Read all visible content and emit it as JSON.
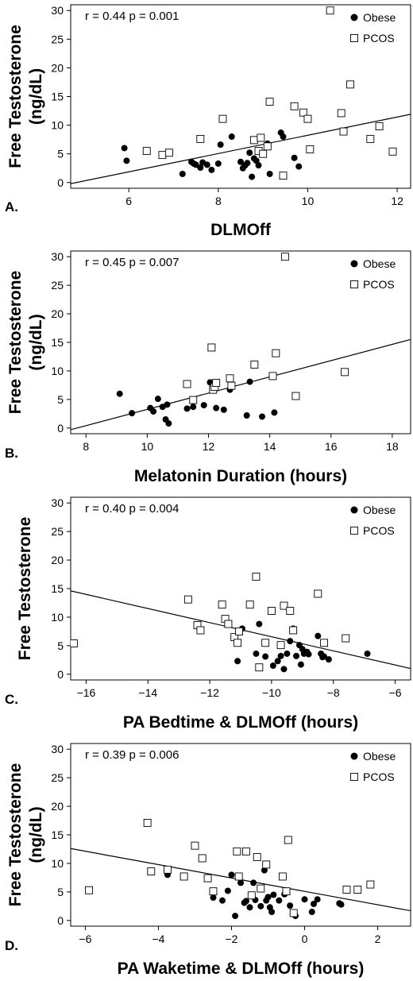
{
  "figure": {
    "y_axis_label_lines": [
      "Free Testosterone",
      "(ng/dL)"
    ]
  },
  "chart_data": [
    {
      "type": "scatter",
      "panel_label": "A.",
      "xlabel": "DLMOff",
      "ylabel": "Free Testosterone (ng/dL)",
      "annotation": "r = 0.44 p = 0.001",
      "xlim": [
        4.7,
        12.3
      ],
      "ylim": [
        -1,
        31
      ],
      "xticks": [
        6,
        8,
        10,
        12
      ],
      "yticks": [
        0,
        5,
        10,
        15,
        20,
        25,
        30
      ],
      "legend": {
        "placement": "top-right"
      },
      "fit_line": {
        "x": [
          4.7,
          12.3
        ],
        "y": [
          -0.2,
          11.9
        ]
      },
      "series": [
        {
          "name": "Obese",
          "marker": "filled-circle",
          "x": [
            5.9,
            5.95,
            7.2,
            7.4,
            7.45,
            7.5,
            7.6,
            7.65,
            7.75,
            7.85,
            8.0,
            8.05,
            8.3,
            8.5,
            8.55,
            8.6,
            8.65,
            8.7,
            8.75,
            8.8,
            8.85,
            8.9,
            9.1,
            9.15,
            9.4,
            9.45,
            9.7,
            9.8
          ],
          "y": [
            6,
            3.8,
            1.5,
            3.6,
            3.3,
            3.1,
            2.6,
            3.5,
            3.1,
            2.2,
            3.3,
            6.6,
            8.0,
            3.6,
            2.5,
            3.0,
            3.4,
            5.2,
            1.0,
            4.2,
            3.8,
            3.0,
            6.8,
            1.5,
            8.7,
            8.0,
            4.3,
            2.8
          ]
        },
        {
          "name": "PCOS",
          "marker": "open-square",
          "x": [
            6.4,
            6.75,
            6.9,
            7.6,
            8.1,
            8.8,
            8.9,
            8.95,
            9.0,
            9.1,
            9.15,
            9.45,
            9.7,
            9.9,
            10.0,
            10.05,
            10.5,
            10.75,
            10.8,
            10.95,
            11.4,
            11.6,
            11.9
          ],
          "y": [
            5.5,
            4.8,
            5.2,
            7.6,
            11.1,
            7.4,
            5.5,
            7.8,
            5.0,
            6.3,
            14.1,
            1.2,
            13.3,
            12.2,
            11.1,
            5.8,
            30.0,
            12.1,
            8.9,
            17.1,
            7.6,
            9.8,
            5.4
          ]
        }
      ]
    },
    {
      "type": "scatter",
      "panel_label": "B.",
      "xlabel": "Melatonin Duration (hours)",
      "ylabel": "Free Testosterone (ng/dL)",
      "annotation": "r = 0.45 p = 0.007",
      "xlim": [
        7.5,
        18.6
      ],
      "ylim": [
        -1,
        31
      ],
      "xticks": [
        8,
        10,
        12,
        14,
        16,
        18
      ],
      "yticks": [
        0,
        5,
        10,
        15,
        20,
        25,
        30
      ],
      "legend": {
        "placement": "top-right"
      },
      "fit_line": {
        "x": [
          7.5,
          18.6
        ],
        "y": [
          -0.3,
          15.5
        ]
      },
      "series": [
        {
          "name": "Obese",
          "marker": "filled-circle",
          "x": [
            9.1,
            9.5,
            10.1,
            10.2,
            10.35,
            10.5,
            10.6,
            10.65,
            10.7,
            11.3,
            11.5,
            11.85,
            12.05,
            12.25,
            12.5,
            12.7,
            13.25,
            13.35,
            13.75,
            14.15
          ],
          "y": [
            6.0,
            2.6,
            3.5,
            2.9,
            5.1,
            3.7,
            1.5,
            4.1,
            0.8,
            3.4,
            3.7,
            4.0,
            8.0,
            3.5,
            3.2,
            6.7,
            2.2,
            8.1,
            2.0,
            2.7
          ]
        },
        {
          "name": "PCOS",
          "marker": "open-square",
          "x": [
            11.3,
            11.5,
            12.1,
            12.15,
            12.2,
            12.25,
            12.7,
            12.75,
            13.5,
            14.1,
            14.2,
            14.5,
            14.85,
            16.45
          ],
          "y": [
            7.7,
            4.9,
            14.1,
            6.7,
            7.2,
            7.9,
            8.7,
            7.4,
            11.1,
            9.1,
            13.1,
            30.0,
            5.6,
            9.8
          ]
        }
      ]
    },
    {
      "type": "scatter",
      "panel_label": "C.",
      "xlabel": "PA Bedtime & DLMOff (hours)",
      "ylabel": "Free Testosterone",
      "annotation": "r = 0.40 p = 0.004",
      "xlim": [
        -16.5,
        -5.5
      ],
      "ylim": [
        -1,
        31
      ],
      "xticks": [
        -16,
        -14,
        -12,
        -10,
        -8,
        -6
      ],
      "yticks": [
        0,
        5,
        10,
        15,
        20,
        25,
        30
      ],
      "legend": {
        "placement": "top-right"
      },
      "fit_line": {
        "x": [
          -16.5,
          -5.5
        ],
        "y": [
          14.6,
          1.0
        ]
      },
      "series": [
        {
          "name": "Obese",
          "marker": "filled-circle",
          "x": [
            -11.1,
            -10.95,
            -10.5,
            -10.4,
            -10.2,
            -9.95,
            -9.8,
            -9.7,
            -9.6,
            -9.5,
            -9.4,
            -9.3,
            -9.2,
            -9.1,
            -9.05,
            -9.0,
            -8.95,
            -8.85,
            -8.8,
            -8.5,
            -8.4,
            -8.35,
            -8.3,
            -8.15,
            -6.9
          ],
          "y": [
            2.3,
            8.0,
            3.6,
            8.8,
            3.1,
            1.5,
            2.3,
            3.2,
            0.9,
            3.6,
            5.8,
            8.0,
            3.2,
            5.1,
            1.7,
            4.4,
            3.6,
            3.9,
            3.5,
            6.7,
            3.6,
            3.0,
            3.1,
            2.6,
            3.6
          ]
        },
        {
          "name": "PCOS",
          "marker": "open-square",
          "x": [
            -16.4,
            -12.7,
            -12.4,
            -12.3,
            -11.6,
            -11.5,
            -11.4,
            -11.2,
            -11.1,
            -11.05,
            -10.7,
            -10.5,
            -10.4,
            -10.2,
            -10.0,
            -9.7,
            -9.6,
            -9.4,
            -9.3,
            -8.5,
            -8.3,
            -7.6
          ],
          "y": [
            5.4,
            13.1,
            8.6,
            7.7,
            12.2,
            9.7,
            8.8,
            6.5,
            5.5,
            7.5,
            12.2,
            17.1,
            1.2,
            5.5,
            11.1,
            5.1,
            12.0,
            11.1,
            7.7,
            14.1,
            5.5,
            6.3
          ]
        }
      ]
    },
    {
      "type": "scatter",
      "panel_label": "D.",
      "xlabel": "PA Waketime & DLMOff (hours)",
      "ylabel": "Free Testosterone (ng/dL)",
      "annotation": "r = 0.39 p = 0.006",
      "xlim": [
        -6.4,
        2.9
      ],
      "ylim": [
        -1,
        31
      ],
      "xticks": [
        -6,
        -4,
        -2,
        0,
        2
      ],
      "yticks": [
        0,
        5,
        10,
        15,
        20,
        25,
        30
      ],
      "legend": {
        "placement": "top-right"
      },
      "fit_line": {
        "x": [
          -6.4,
          2.9
        ],
        "y": [
          12.6,
          1.7
        ]
      },
      "series": [
        {
          "name": "Obese",
          "marker": "filled-circle",
          "x": [
            -3.75,
            -2.5,
            -2.25,
            -2.1,
            -2.0,
            -1.9,
            -1.75,
            -1.65,
            -1.6,
            -1.5,
            -1.4,
            -1.35,
            -1.2,
            -1.1,
            -1.05,
            -1.0,
            -0.95,
            -0.9,
            -0.85,
            -0.7,
            -0.55,
            -0.4,
            -0.25,
            0.0,
            0.2,
            0.25,
            0.35,
            0.95,
            1.0
          ],
          "y": [
            8.0,
            4.0,
            3.5,
            5.2,
            8.0,
            0.8,
            6.6,
            3.1,
            3.4,
            2.3,
            6.6,
            3.6,
            2.5,
            8.8,
            3.5,
            4.1,
            2.3,
            1.5,
            4.5,
            3.5,
            4.6,
            2.6,
            0.8,
            3.7,
            1.5,
            2.9,
            3.7,
            3.0,
            2.8
          ]
        },
        {
          "name": "PCOS",
          "marker": "open-square",
          "x": [
            -5.9,
            -4.3,
            -4.2,
            -3.75,
            -3.3,
            -3.0,
            -2.8,
            -2.65,
            -2.5,
            -1.85,
            -1.8,
            -1.6,
            -1.45,
            -1.3,
            -1.2,
            -1.05,
            -0.6,
            -0.5,
            -0.45,
            -0.3,
            1.15,
            1.45,
            1.8
          ],
          "y": [
            5.3,
            17.1,
            8.6,
            8.9,
            7.7,
            13.1,
            10.9,
            7.4,
            5.1,
            12.1,
            7.7,
            12.1,
            4.4,
            11.1,
            5.6,
            9.8,
            7.7,
            5.1,
            14.1,
            1.3,
            5.4,
            5.4,
            6.3
          ]
        }
      ]
    }
  ]
}
